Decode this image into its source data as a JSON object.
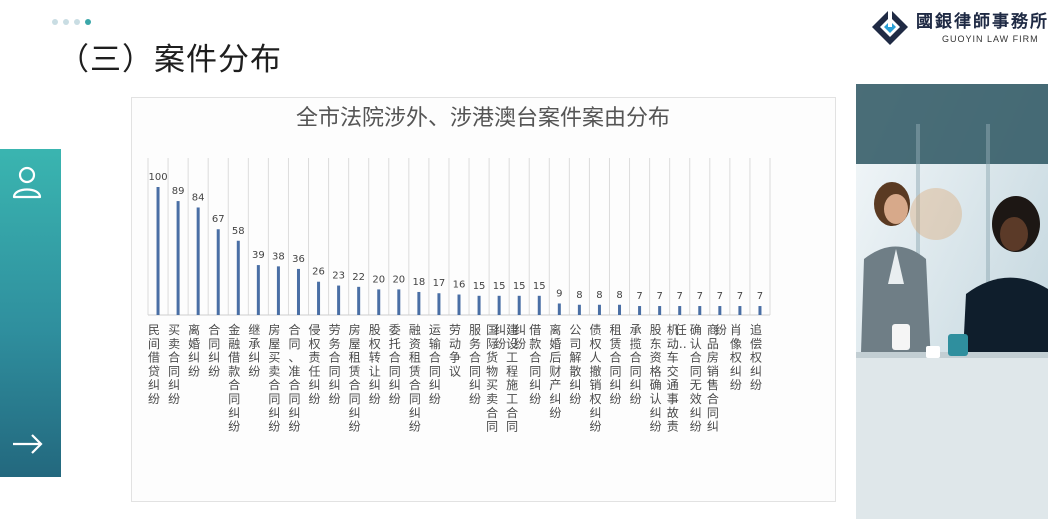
{
  "header": {
    "title": "（三）案件分布",
    "logo_name": "國銀律師事務所",
    "logo_sub": "GUOYIN LAW FIRM"
  },
  "colors": {
    "accent": "#3aa7a9",
    "bar": "#4a6fa5",
    "sidebar_top": "#3ab5b0",
    "sidebar_bottom": "#23687e"
  },
  "sidebar": {
    "icons": [
      "user-icon",
      "arrow-right-icon"
    ]
  },
  "chart_data": {
    "type": "bar",
    "title": "全市法院涉外、涉港澳台案件案由分布",
    "categories": [
      "民间借贷纠纷",
      "买卖合同纠纷",
      "离婚纠纷",
      "合同纠纷",
      "金融借款合同纠纷",
      "继承纠纷",
      "房屋买卖合同纠纷",
      "合同、准合同纠纷",
      "侵权责任纠纷",
      "劳务合同纠纷",
      "房屋租赁合同纠纷",
      "股权转让纠纷",
      "委托合同纠纷",
      "融资租赁合同纠纷",
      "运输合同纠纷",
      "劳动争议",
      "服务合同纠纷",
      "国际货物买卖合同纠纷",
      "建设工程施工合同纠纷",
      "借款合同纠纷",
      "离婚后财产纠纷",
      "公司解散纠纷",
      "债权人撤销权纠纷",
      "租赁合同纠纷",
      "承揽合同纠纷",
      "股东资格确认纠纷",
      "机动车交通事故责任…",
      "确认合同无效纠纷",
      "商品房销售合同纠纷",
      "肖像权纠纷",
      "追偿权纠纷"
    ],
    "values": [
      100,
      89,
      84,
      67,
      58,
      39,
      38,
      36,
      26,
      23,
      22,
      20,
      20,
      18,
      17,
      16,
      15,
      15,
      15,
      15,
      9,
      8,
      8,
      8,
      7,
      7,
      7,
      7,
      7,
      7,
      7
    ],
    "ylim": [
      0,
      100
    ],
    "grid": "vertical",
    "legend": "none"
  }
}
